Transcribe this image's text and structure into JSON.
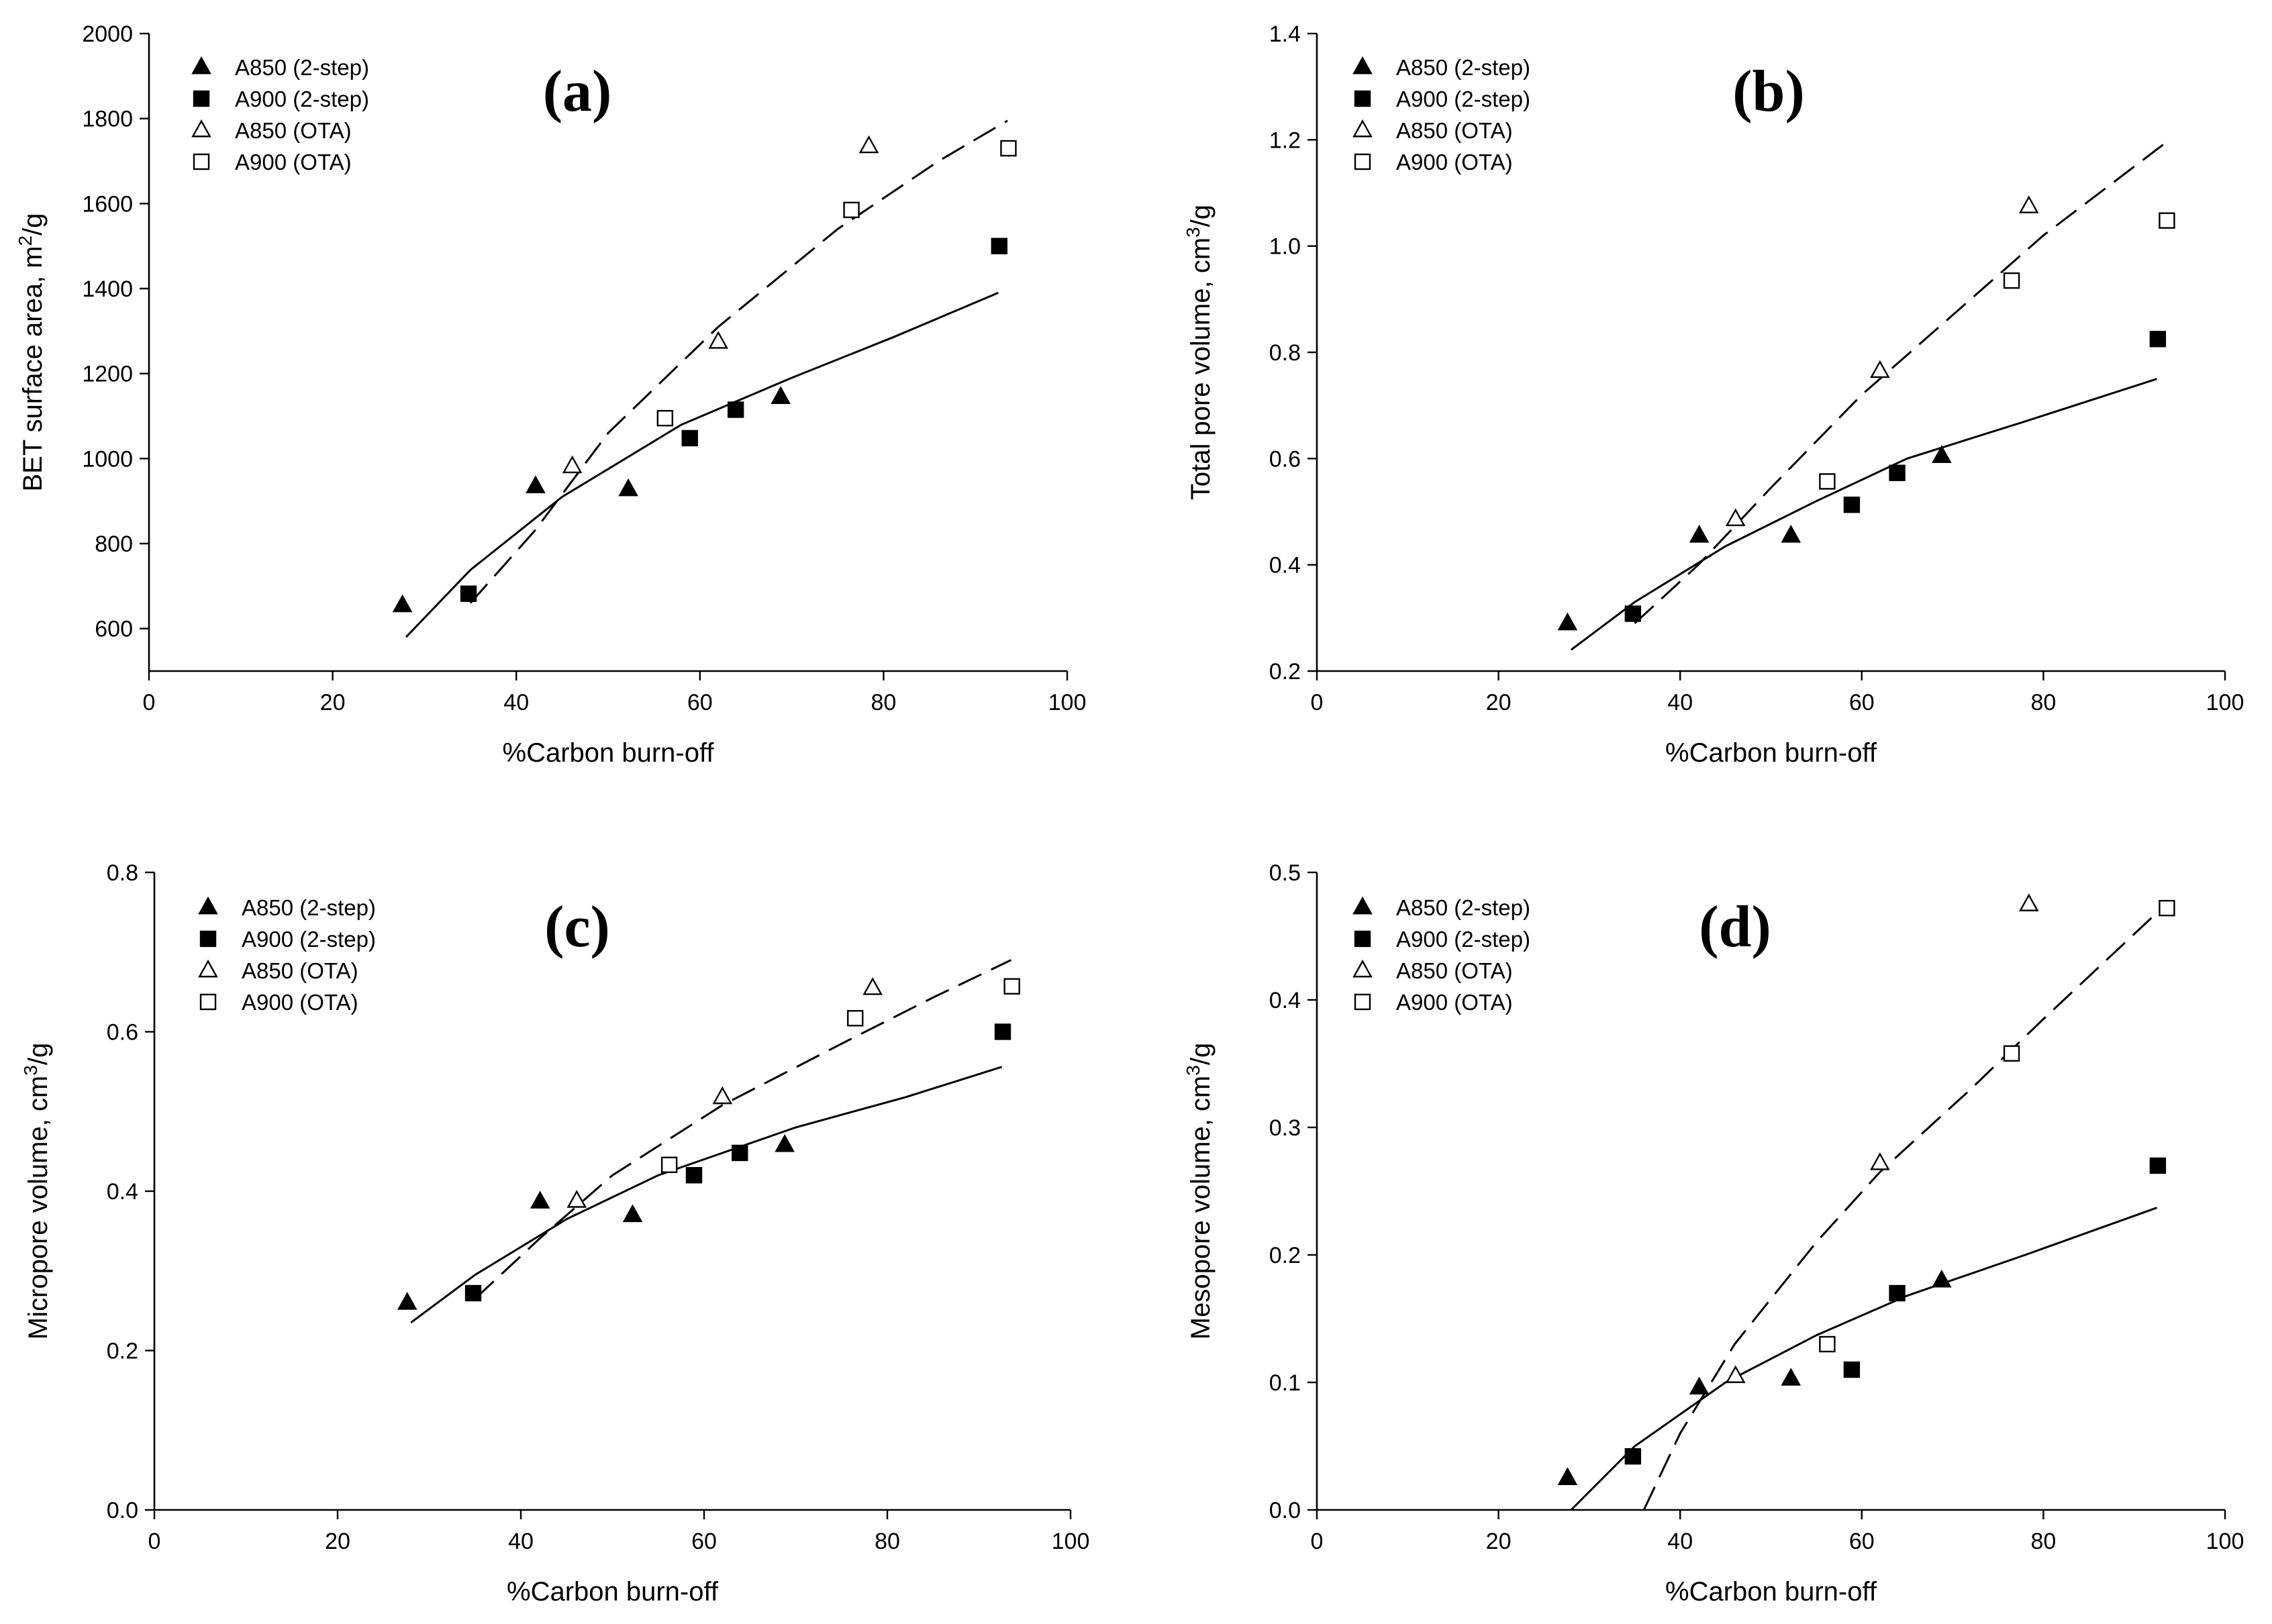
{
  "figure": {
    "x_axis_label": "%Carbon burn-off",
    "legend_symbols": {
      "a850_2step": "filled-triangle",
      "a900_2step": "filled-square",
      "a850_ota": "open-triangle",
      "a900_ota": "open-square"
    }
  },
  "chart_data": [
    {
      "type": "scatter",
      "panel": "(a)",
      "xlabel": "%Carbon burn-off",
      "ylabel_main": "BET surface area, m",
      "ylabel_sup": "2",
      "ylabel_tail": "/g",
      "xlim": [
        0,
        100
      ],
      "ylim": [
        500,
        2000
      ],
      "xticks": [
        0,
        20,
        40,
        60,
        80,
        100
      ],
      "yticks": [
        600,
        800,
        1000,
        1200,
        1400,
        1600,
        1800,
        2000
      ],
      "series": [
        {
          "name": "A850 (2-step)",
          "marker": "filled-triangle",
          "points": [
            [
              27.6,
              655
            ],
            [
              42.1,
              935
            ],
            [
              52.2,
              928
            ],
            [
              68.8,
              1145
            ]
          ]
        },
        {
          "name": "A900 (2-step)",
          "marker": "filled-square",
          "points": [
            [
              34.8,
              682
            ],
            [
              58.9,
              1048
            ],
            [
              63.9,
              1115
            ],
            [
              92.6,
              1500
            ]
          ]
        },
        {
          "name": "A850 (OTA)",
          "marker": "open-triangle",
          "points": [
            [
              46.1,
              982
            ],
            [
              62.0,
              1275
            ],
            [
              78.4,
              1735
            ]
          ]
        },
        {
          "name": "A900 (OTA)",
          "marker": "open-square",
          "points": [
            [
              56.2,
              1095
            ],
            [
              76.5,
              1585
            ],
            [
              93.6,
              1730
            ]
          ]
        }
      ],
      "fits": [
        {
          "name": "2-step fit",
          "style": "solid",
          "points": [
            [
              28,
              580
            ],
            [
              35,
              738
            ],
            [
              45,
              910
            ],
            [
              58,
              1080
            ],
            [
              70,
              1190
            ],
            [
              81,
              1285
            ],
            [
              92.5,
              1390
            ]
          ]
        },
        {
          "name": "OTA fit",
          "style": "dashed",
          "points": [
            [
              35,
              660
            ],
            [
              42,
              830
            ],
            [
              50,
              1060
            ],
            [
              62,
              1310
            ],
            [
              75,
              1540
            ],
            [
              86,
              1700
            ],
            [
              93.5,
              1795
            ]
          ]
        }
      ]
    },
    {
      "type": "scatter",
      "panel": "(b)",
      "xlabel": "%Carbon burn-off",
      "ylabel_main": "Total pore volume, cm",
      "ylabel_sup": "3",
      "ylabel_tail": "/g",
      "xlim": [
        0,
        100
      ],
      "ylim": [
        0.2,
        1.4
      ],
      "xticks": [
        0,
        20,
        40,
        60,
        80,
        100
      ],
      "yticks": [
        0.2,
        0.4,
        0.6,
        0.8,
        1.0,
        1.2,
        1.4
      ],
      "yticks_labels": [
        "0.2",
        "0.4",
        "0.6",
        "0.8",
        "1.0",
        "1.2",
        "1.4"
      ],
      "series": [
        {
          "name": "A850 (2-step)",
          "marker": "filled-triangle",
          "points": [
            [
              27.6,
              0.29
            ],
            [
              42.1,
              0.455
            ],
            [
              52.2,
              0.455
            ],
            [
              68.8,
              0.605
            ]
          ]
        },
        {
          "name": "A900 (2-step)",
          "marker": "filled-square",
          "points": [
            [
              34.8,
              0.308
            ],
            [
              58.9,
              0.513
            ],
            [
              63.9,
              0.573
            ],
            [
              92.6,
              0.825
            ]
          ]
        },
        {
          "name": "A850 (OTA)",
          "marker": "open-triangle",
          "points": [
            [
              46.1,
              0.486
            ],
            [
              62.0,
              0.765
            ],
            [
              78.4,
              1.075
            ]
          ]
        },
        {
          "name": "A900 (OTA)",
          "marker": "open-square",
          "points": [
            [
              56.2,
              0.557
            ],
            [
              76.5,
              0.935
            ],
            [
              93.6,
              1.048
            ]
          ]
        }
      ],
      "fits": [
        {
          "name": "2-step fit",
          "style": "solid",
          "points": [
            [
              28,
              0.24
            ],
            [
              35,
              0.33
            ],
            [
              45,
              0.435
            ],
            [
              55,
              0.52
            ],
            [
              65,
              0.6
            ],
            [
              78,
              0.67
            ],
            [
              92.5,
              0.75
            ]
          ]
        },
        {
          "name": "OTA fit",
          "style": "dashed",
          "points": [
            [
              35,
              0.29
            ],
            [
              42,
              0.4
            ],
            [
              50,
              0.545
            ],
            [
              60,
              0.72
            ],
            [
              70,
              0.87
            ],
            [
              80,
              1.02
            ],
            [
              93.5,
              1.195
            ]
          ]
        }
      ]
    },
    {
      "type": "scatter",
      "panel": "(c)",
      "xlabel": "%Carbon burn-off",
      "ylabel_main": "Micropore volume, cm",
      "ylabel_sup": "3",
      "ylabel_tail": "/g",
      "xlim": [
        0,
        100
      ],
      "ylim": [
        0,
        0.8
      ],
      "xticks": [
        0,
        20,
        40,
        60,
        80,
        100
      ],
      "yticks": [
        0,
        0.2,
        0.4,
        0.6,
        0.8
      ],
      "yticks_labels": [
        "0.0",
        "0.2",
        "0.4",
        "0.6",
        "0.8"
      ],
      "series": [
        {
          "name": "A850 (2-step)",
          "marker": "filled-triangle",
          "points": [
            [
              27.6,
              0.26
            ],
            [
              42.1,
              0.387
            ],
            [
              52.2,
              0.37
            ],
            [
              68.8,
              0.458
            ]
          ]
        },
        {
          "name": "A900 (2-step)",
          "marker": "filled-square",
          "points": [
            [
              34.8,
              0.272
            ],
            [
              58.9,
              0.42
            ],
            [
              63.9,
              0.448
            ],
            [
              92.6,
              0.6
            ]
          ]
        },
        {
          "name": "A850 (OTA)",
          "marker": "open-triangle",
          "points": [
            [
              46.1,
              0.388
            ],
            [
              62.0,
              0.518
            ],
            [
              78.4,
              0.655
            ]
          ]
        },
        {
          "name": "A900 (OTA)",
          "marker": "open-square",
          "points": [
            [
              56.2,
              0.433
            ],
            [
              76.5,
              0.617
            ],
            [
              93.6,
              0.657
            ]
          ]
        }
      ],
      "fits": [
        {
          "name": "2-step fit",
          "style": "solid",
          "points": [
            [
              28,
              0.235
            ],
            [
              35,
              0.295
            ],
            [
              45,
              0.365
            ],
            [
              55,
              0.42
            ],
            [
              70,
              0.48
            ],
            [
              82,
              0.518
            ],
            [
              92.5,
              0.556
            ]
          ]
        },
        {
          "name": "OTA fit",
          "style": "dashed",
          "points": [
            [
              35,
              0.265
            ],
            [
              42,
              0.34
            ],
            [
              50,
              0.42
            ],
            [
              62,
              0.508
            ],
            [
              75,
              0.585
            ],
            [
              85,
              0.643
            ],
            [
              93.5,
              0.69
            ]
          ]
        }
      ]
    },
    {
      "type": "scatter",
      "panel": "(d)",
      "xlabel": "%Carbon burn-off",
      "ylabel_main": "Mesopore volume, cm",
      "ylabel_sup": "3",
      "ylabel_tail": "/g",
      "xlim": [
        0,
        100
      ],
      "ylim": [
        0,
        0.5
      ],
      "xticks": [
        0,
        20,
        40,
        60,
        80,
        100
      ],
      "yticks": [
        0,
        0.1,
        0.2,
        0.3,
        0.4,
        0.5
      ],
      "yticks_labels": [
        "0.0",
        "0.1",
        "0.2",
        "0.3",
        "0.4",
        "0.5"
      ],
      "series": [
        {
          "name": "A850 (2-step)",
          "marker": "filled-triangle",
          "points": [
            [
              27.6,
              0.025
            ],
            [
              42.1,
              0.096
            ],
            [
              52.2,
              0.103
            ],
            [
              68.8,
              0.18
            ]
          ]
        },
        {
          "name": "A900 (2-step)",
          "marker": "filled-square",
          "points": [
            [
              34.8,
              0.042
            ],
            [
              58.9,
              0.11
            ],
            [
              63.9,
              0.17
            ],
            [
              92.6,
              0.27
            ]
          ]
        },
        {
          "name": "A850 (OTA)",
          "marker": "open-triangle",
          "points": [
            [
              46.1,
              0.105
            ],
            [
              62.0,
              0.272
            ],
            [
              78.4,
              0.475
            ]
          ]
        },
        {
          "name": "A900 (OTA)",
          "marker": "open-square",
          "points": [
            [
              56.2,
              0.13
            ],
            [
              76.5,
              0.358
            ],
            [
              93.6,
              0.472
            ]
          ]
        }
      ],
      "fits": [
        {
          "name": "2-step fit",
          "style": "solid",
          "points": [
            [
              28,
              0.0
            ],
            [
              35,
              0.05
            ],
            [
              45,
              0.1
            ],
            [
              55,
              0.137
            ],
            [
              65,
              0.168
            ],
            [
              78,
              0.2
            ],
            [
              92.5,
              0.237
            ]
          ]
        },
        {
          "name": "OTA fit",
          "style": "dashed",
          "points": [
            [
              36,
              0.0
            ],
            [
              40,
              0.06
            ],
            [
              46,
              0.13
            ],
            [
              55,
              0.21
            ],
            [
              62,
              0.265
            ],
            [
              72,
              0.33
            ],
            [
              80,
              0.385
            ],
            [
              93.5,
              0.475
            ]
          ]
        }
      ]
    }
  ]
}
